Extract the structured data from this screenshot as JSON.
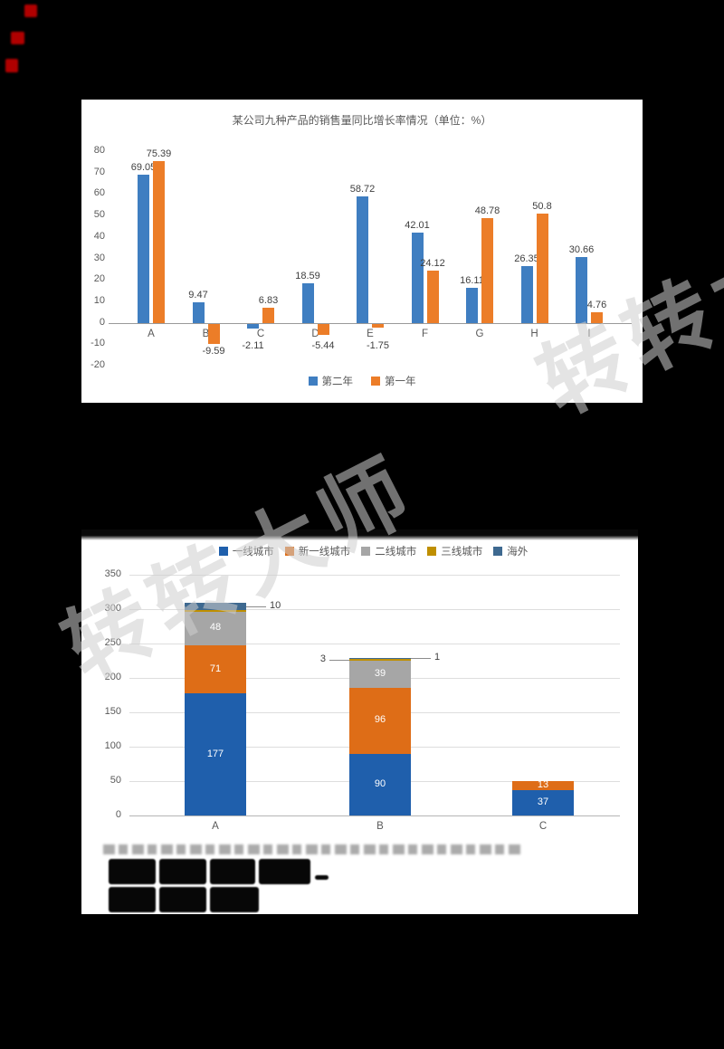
{
  "watermark": {
    "text": "转转大师"
  },
  "chart_data": [
    {
      "type": "bar",
      "title": "某公司九种产品的销售量同比增长率情况（单位：%）",
      "categories": [
        "A",
        "B",
        "C",
        "D",
        "E",
        "F",
        "G",
        "H",
        "I"
      ],
      "series": [
        {
          "name": "第二年",
          "color": "#3F7EC1",
          "values": [
            69.05,
            9.47,
            -2.11,
            18.59,
            58.72,
            42.01,
            16.11,
            26.35,
            30.66
          ]
        },
        {
          "name": "第一年",
          "color": "#EC7D28",
          "values": [
            75.39,
            -9.59,
            6.83,
            -5.44,
            -1.75,
            24.12,
            48.78,
            50.8,
            4.76
          ]
        }
      ],
      "ylim": [
        -20,
        80
      ],
      "yticks": [
        80,
        70,
        60,
        50,
        40,
        30,
        20,
        10,
        0,
        -10,
        -20
      ],
      "grid": false,
      "legend_position": "bottom"
    },
    {
      "type": "stacked-bar",
      "categories": [
        "A",
        "B",
        "C"
      ],
      "series": [
        {
          "name": "一线城市",
          "color": "#1F5FAC",
          "values": [
            177,
            90,
            37
          ]
        },
        {
          "name": "新一线城市",
          "color": "#DE6D17",
          "values": [
            71,
            96,
            13
          ]
        },
        {
          "name": "二线城市",
          "color": "#A6A6A6",
          "values": [
            48,
            39,
            0
          ]
        },
        {
          "name": "三线城市",
          "color": "#BF8F00",
          "values": [
            3,
            3,
            0
          ]
        },
        {
          "name": "海外",
          "color": "#3E6990",
          "values": [
            10,
            1,
            0
          ]
        }
      ],
      "ylim": [
        0,
        350
      ],
      "yticks": [
        350,
        300,
        250,
        200,
        150,
        100,
        50,
        0
      ],
      "grid": true,
      "legend_position": "top",
      "data_label_min": 13,
      "callouts": [
        {
          "category": "A",
          "series": "海外",
          "text": "10",
          "side": "right"
        },
        {
          "category": "B",
          "series": "三线城市",
          "text": "3",
          "side": "left"
        },
        {
          "category": "B",
          "series": "海外",
          "text": "1",
          "side": "right"
        }
      ]
    }
  ]
}
